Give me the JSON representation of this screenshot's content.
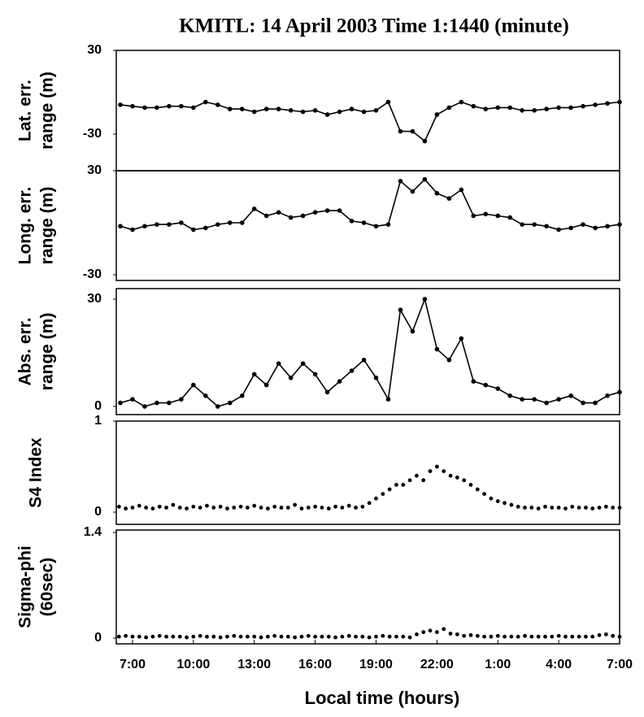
{
  "chart_data": [
    {
      "type": "line",
      "title": "KMITL:  14 April 2003  Time 1:1440 (minute)",
      "ylabel": [
        "Lat. err.",
        "range (m)"
      ],
      "color": "#000000",
      "x": [
        -36,
        0,
        36,
        72,
        108,
        144,
        180,
        216,
        252,
        288,
        324,
        360,
        396,
        432,
        468,
        504,
        540,
        576,
        612,
        648,
        684,
        720,
        756,
        792,
        828,
        864,
        900,
        936,
        972,
        1008,
        1044,
        1080,
        1116,
        1152,
        1188,
        1224,
        1260,
        1296,
        1332,
        1368,
        1404,
        1440
      ],
      "values": [
        -9,
        -10,
        -11,
        -11,
        -10,
        -10,
        -11,
        -7,
        -9,
        -12,
        -12,
        -14,
        -12,
        -12,
        -13,
        -14,
        -13,
        -16,
        -14,
        -12,
        -14,
        -13,
        -7,
        -28,
        -28,
        -35,
        -16,
        -11,
        -7,
        -10,
        -12,
        -11,
        -11,
        -13,
        -13,
        -12,
        -11,
        -11,
        -10,
        -9,
        -8,
        -7
      ],
      "xlim": [
        -48,
        1440
      ],
      "ylim": [
        -30,
        30
      ],
      "yticks": [
        -30,
        30
      ]
    },
    {
      "type": "line",
      "ylabel": [
        "Long. err.",
        "range (m)"
      ],
      "color": "#000000",
      "x": [
        -36,
        0,
        36,
        72,
        108,
        144,
        180,
        216,
        252,
        288,
        324,
        360,
        396,
        432,
        468,
        504,
        540,
        576,
        612,
        648,
        684,
        720,
        756,
        792,
        828,
        864,
        900,
        936,
        972,
        1008,
        1044,
        1080,
        1116,
        1152,
        1188,
        1224,
        1260,
        1296,
        1332,
        1368,
        1404,
        1440
      ],
      "values": [
        -2,
        -4,
        -2,
        -1,
        -1,
        0,
        -4,
        -3,
        -1,
        0,
        0,
        8,
        4,
        6,
        3,
        4,
        6,
        7,
        7,
        1,
        0,
        -2,
        -1,
        24,
        18,
        25,
        17,
        14,
        19,
        4,
        5,
        4,
        3,
        -1,
        -1,
        -2,
        -4,
        -3,
        -1,
        -3,
        -2,
        -1
      ],
      "xlim": [
        -48,
        1440
      ],
      "ylim": [
        -30,
        30
      ],
      "yticks": [
        -30,
        30
      ]
    },
    {
      "type": "line",
      "ylabel": [
        "Abs. err.",
        "range (m)"
      ],
      "color": "#000000",
      "x": [
        -36,
        0,
        36,
        72,
        108,
        144,
        180,
        216,
        252,
        288,
        324,
        360,
        396,
        432,
        468,
        504,
        540,
        576,
        612,
        648,
        684,
        720,
        756,
        792,
        828,
        864,
        900,
        936,
        972,
        1008,
        1044,
        1080,
        1116,
        1152,
        1188,
        1224,
        1260,
        1296,
        1332,
        1368,
        1404,
        1440
      ],
      "values": [
        1,
        2,
        0,
        1,
        1,
        2,
        6,
        3,
        0,
        1,
        3,
        9,
        6,
        12,
        8,
        12,
        9,
        4,
        7,
        10,
        13,
        8,
        2,
        27,
        21,
        30,
        16,
        13,
        19,
        7,
        6,
        5,
        3,
        2,
        2,
        1,
        2,
        3,
        1,
        1,
        3,
        4
      ],
      "xlim": [
        -48,
        1440
      ],
      "ylim": [
        0,
        30
      ],
      "yticks": [
        0,
        30
      ]
    },
    {
      "type": "scatter",
      "ylabel": [
        "S4 Index"
      ],
      "color": "#000000",
      "x": [
        -40,
        -20,
        0,
        20,
        40,
        60,
        80,
        100,
        120,
        140,
        160,
        180,
        200,
        220,
        240,
        260,
        280,
        300,
        320,
        340,
        360,
        380,
        400,
        420,
        440,
        460,
        480,
        500,
        520,
        540,
        560,
        580,
        600,
        620,
        640,
        660,
        680,
        700,
        720,
        740,
        760,
        780,
        800,
        820,
        840,
        860,
        880,
        900,
        920,
        940,
        960,
        980,
        1000,
        1020,
        1040,
        1060,
        1080,
        1100,
        1120,
        1140,
        1160,
        1180,
        1200,
        1220,
        1240,
        1260,
        1280,
        1300,
        1320,
        1340,
        1360,
        1380,
        1400,
        1420,
        1440
      ],
      "values": [
        0.06,
        0.04,
        0.05,
        0.07,
        0.05,
        0.04,
        0.06,
        0.05,
        0.08,
        0.05,
        0.04,
        0.06,
        0.05,
        0.07,
        0.05,
        0.06,
        0.04,
        0.05,
        0.06,
        0.05,
        0.07,
        0.05,
        0.04,
        0.06,
        0.05,
        0.05,
        0.08,
        0.04,
        0.05,
        0.06,
        0.05,
        0.04,
        0.06,
        0.05,
        0.07,
        0.05,
        0.06,
        0.1,
        0.15,
        0.2,
        0.25,
        0.3,
        0.3,
        0.35,
        0.4,
        0.35,
        0.45,
        0.5,
        0.45,
        0.4,
        0.38,
        0.35,
        0.3,
        0.25,
        0.2,
        0.15,
        0.12,
        0.1,
        0.08,
        0.06,
        0.05,
        0.05,
        0.04,
        0.06,
        0.05,
        0.05,
        0.04,
        0.06,
        0.05,
        0.05,
        0.04,
        0.05,
        0.06,
        0.05,
        0.05
      ],
      "xlim": [
        -48,
        1440
      ],
      "ylim": [
        0,
        1
      ],
      "yticks": [
        0,
        1
      ]
    },
    {
      "type": "scatter",
      "ylabel": [
        "Sigma-phi",
        "(60sec)"
      ],
      "color": "#000000",
      "x": [
        -40,
        -20,
        0,
        20,
        40,
        60,
        80,
        100,
        120,
        140,
        160,
        180,
        200,
        220,
        240,
        260,
        280,
        300,
        320,
        340,
        360,
        380,
        400,
        420,
        440,
        460,
        480,
        500,
        520,
        540,
        560,
        580,
        600,
        620,
        640,
        660,
        680,
        700,
        720,
        740,
        760,
        780,
        800,
        820,
        840,
        860,
        880,
        900,
        920,
        940,
        960,
        980,
        1000,
        1020,
        1040,
        1060,
        1080,
        1100,
        1120,
        1140,
        1160,
        1180,
        1200,
        1220,
        1240,
        1260,
        1280,
        1300,
        1320,
        1340,
        1360,
        1380,
        1400,
        1420,
        1440
      ],
      "values": [
        0.02,
        0.03,
        0.02,
        0.02,
        0.01,
        0.02,
        0.03,
        0.02,
        0.02,
        0.02,
        0.01,
        0.02,
        0.03,
        0.02,
        0.02,
        0.01,
        0.02,
        0.03,
        0.02,
        0.02,
        0.02,
        0.01,
        0.02,
        0.03,
        0.02,
        0.02,
        0.01,
        0.02,
        0.03,
        0.02,
        0.02,
        0.02,
        0.01,
        0.02,
        0.03,
        0.02,
        0.02,
        0.01,
        0.02,
        0.03,
        0.02,
        0.02,
        0.02,
        0.01,
        0.05,
        0.08,
        0.1,
        0.08,
        0.12,
        0.06,
        0.05,
        0.03,
        0.04,
        0.03,
        0.02,
        0.02,
        0.03,
        0.02,
        0.02,
        0.02,
        0.03,
        0.02,
        0.02,
        0.02,
        0.02,
        0.03,
        0.02,
        0.02,
        0.02,
        0.02,
        0.02,
        0.04,
        0.05,
        0.03,
        0.02
      ],
      "xlim": [
        -48,
        1440
      ],
      "ylim": [
        0,
        1.4
      ],
      "yticks": [
        0,
        1.4
      ],
      "xticks": [
        {
          "value": 0,
          "label": "7:00"
        },
        {
          "value": 180,
          "label": "10:00"
        },
        {
          "value": 360,
          "label": "13:00"
        },
        {
          "value": 540,
          "label": "16:00"
        },
        {
          "value": 720,
          "label": "19:00"
        },
        {
          "value": 900,
          "label": "22:00"
        },
        {
          "value": 1080,
          "label": "1:00"
        },
        {
          "value": 1260,
          "label": "4:00"
        },
        {
          "value": 1440,
          "label": "7:00"
        }
      ],
      "xlabel": "Local time (hours)"
    }
  ]
}
